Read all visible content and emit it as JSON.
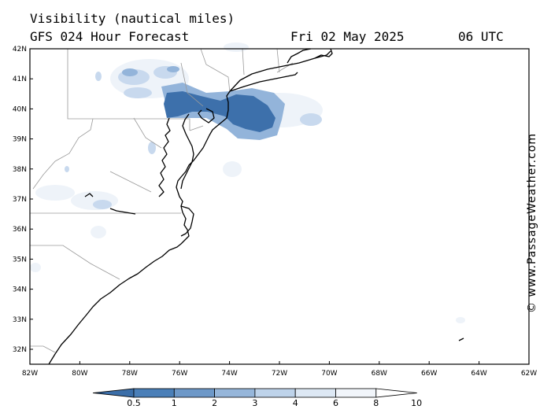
{
  "header": {
    "title": "Visibility (nautical miles)",
    "model": "GFS 024 Hour Forecast",
    "date": "Fri 02 May 2025",
    "time": "06 UTC"
  },
  "axes": {
    "lat_labels": [
      "42N",
      "41N",
      "40N",
      "39N",
      "38N",
      "37N",
      "36N",
      "35N",
      "34N",
      "33N",
      "32N"
    ],
    "lon_labels": [
      "82W",
      "80W",
      "78W",
      "76W",
      "74W",
      "72W",
      "70W",
      "68W",
      "66W",
      "64W",
      "62W"
    ]
  },
  "colorbar": {
    "labels": [
      "0.5",
      "1",
      "2",
      "3",
      "4",
      "6",
      "8",
      "10"
    ],
    "colors": [
      "#3b6ea8",
      "#4a7fb8",
      "#6d98c8",
      "#96b6da",
      "#bed3ea",
      "#dde8f4",
      "#f1f5fa",
      "#ffffff"
    ]
  },
  "credit": "© www.PassageWeather.com",
  "colors": {
    "land_line": "#000000",
    "border_line": "#9a9a9a",
    "low_vis": "#3b6ea8"
  }
}
